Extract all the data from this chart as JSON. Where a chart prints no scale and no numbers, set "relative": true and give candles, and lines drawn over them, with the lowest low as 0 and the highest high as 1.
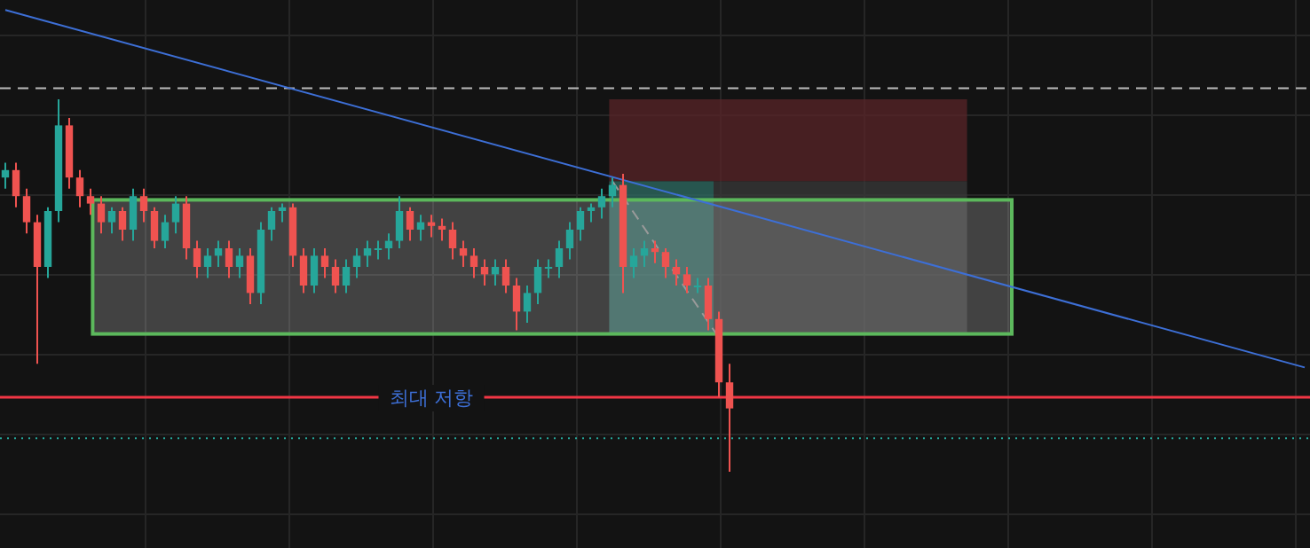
{
  "chart_data": {
    "type": "candlestick",
    "relative": true,
    "grid": true,
    "categories": [
      null,
      null,
      null,
      null,
      null,
      null,
      null,
      null,
      null,
      null,
      null,
      null,
      null,
      null,
      null,
      null,
      null,
      null,
      null,
      null,
      null,
      null,
      null,
      null,
      null,
      null,
      null,
      null,
      null,
      null,
      null,
      null,
      null,
      null,
      null,
      null,
      null,
      null,
      null,
      null,
      null,
      null,
      null,
      null,
      null,
      null,
      null,
      null,
      null,
      null,
      null,
      null,
      null,
      null,
      null,
      null,
      null,
      null,
      null,
      null,
      null,
      null,
      null,
      null,
      null,
      null,
      null,
      null,
      null,
      null,
      null,
      null,
      null,
      null,
      null,
      null,
      null,
      null,
      null,
      null,
      null,
      null,
      null,
      null,
      null,
      null,
      null,
      null,
      null,
      null,
      null,
      null,
      null,
      null,
      null,
      null,
      null,
      null,
      null,
      null,
      null,
      null,
      null,
      null,
      null,
      null,
      null,
      null,
      null,
      null,
      null,
      null,
      null,
      null,
      null,
      null,
      null,
      null,
      null,
      null,
      null,
      null,
      null
    ],
    "ohlc": [
      [
        0.79,
        0.83,
        0.76,
        0.81
      ],
      [
        0.81,
        0.83,
        0.71,
        0.74
      ],
      [
        0.74,
        0.76,
        0.64,
        0.67
      ],
      [
        0.67,
        0.69,
        0.29,
        0.55
      ],
      [
        0.55,
        0.71,
        0.52,
        0.7
      ],
      [
        0.7,
        1.0,
        0.67,
        0.93
      ],
      [
        0.93,
        0.95,
        0.76,
        0.79
      ],
      [
        0.79,
        0.81,
        0.71,
        0.74
      ],
      [
        0.74,
        0.76,
        0.69,
        0.72
      ],
      [
        0.72,
        0.74,
        0.64,
        0.67
      ],
      [
        0.67,
        0.71,
        0.64,
        0.7
      ],
      [
        0.7,
        0.71,
        0.62,
        0.65
      ],
      [
        0.65,
        0.76,
        0.62,
        0.74
      ],
      [
        0.74,
        0.76,
        0.67,
        0.7
      ],
      [
        0.7,
        0.71,
        0.6,
        0.62
      ],
      [
        0.62,
        0.69,
        0.6,
        0.67
      ],
      [
        0.67,
        0.74,
        0.64,
        0.72
      ],
      [
        0.72,
        0.74,
        0.57,
        0.6
      ],
      [
        0.6,
        0.62,
        0.52,
        0.55
      ],
      [
        0.55,
        0.6,
        0.52,
        0.58
      ],
      [
        0.58,
        0.62,
        0.55,
        0.6
      ],
      [
        0.6,
        0.62,
        0.52,
        0.55
      ],
      [
        0.55,
        0.6,
        0.52,
        0.58
      ],
      [
        0.58,
        0.6,
        0.45,
        0.48
      ],
      [
        0.48,
        0.67,
        0.45,
        0.65
      ],
      [
        0.65,
        0.71,
        0.62,
        0.7
      ],
      [
        0.7,
        0.72,
        0.67,
        0.71
      ],
      [
        0.71,
        0.72,
        0.55,
        0.58
      ],
      [
        0.58,
        0.6,
        0.48,
        0.5
      ],
      [
        0.5,
        0.6,
        0.48,
        0.58
      ],
      [
        0.58,
        0.6,
        0.52,
        0.55
      ],
      [
        0.55,
        0.57,
        0.48,
        0.5
      ],
      [
        0.5,
        0.57,
        0.48,
        0.55
      ],
      [
        0.55,
        0.6,
        0.52,
        0.58
      ],
      [
        0.58,
        0.62,
        0.55,
        0.6
      ],
      [
        0.6,
        0.62,
        0.57,
        0.6
      ],
      [
        0.6,
        0.64,
        0.57,
        0.62
      ],
      [
        0.62,
        0.74,
        0.6,
        0.7
      ],
      [
        0.7,
        0.71,
        0.62,
        0.65
      ],
      [
        0.65,
        0.69,
        0.62,
        0.67
      ],
      [
        0.67,
        0.69,
        0.63,
        0.66
      ],
      [
        0.66,
        0.68,
        0.62,
        0.65
      ],
      [
        0.65,
        0.67,
        0.57,
        0.6
      ],
      [
        0.6,
        0.62,
        0.55,
        0.58
      ],
      [
        0.58,
        0.6,
        0.52,
        0.55
      ],
      [
        0.55,
        0.57,
        0.5,
        0.53
      ],
      [
        0.53,
        0.57,
        0.5,
        0.55
      ],
      [
        0.55,
        0.57,
        0.48,
        0.5
      ],
      [
        0.5,
        0.52,
        0.38,
        0.43
      ],
      [
        0.43,
        0.5,
        0.4,
        0.48
      ],
      [
        0.48,
        0.57,
        0.45,
        0.55
      ],
      [
        0.55,
        0.57,
        0.52,
        0.55
      ],
      [
        0.55,
        0.62,
        0.52,
        0.6
      ],
      [
        0.6,
        0.67,
        0.57,
        0.65
      ],
      [
        0.65,
        0.71,
        0.62,
        0.7
      ],
      [
        0.7,
        0.72,
        0.67,
        0.71
      ],
      [
        0.71,
        0.76,
        0.68,
        0.74
      ],
      [
        0.74,
        0.79,
        0.71,
        0.77
      ],
      [
        0.77,
        0.8,
        0.48,
        0.55
      ],
      [
        0.55,
        0.6,
        0.52,
        0.58
      ],
      [
        0.58,
        0.62,
        0.55,
        0.6
      ],
      [
        0.6,
        0.62,
        0.56,
        0.59
      ],
      [
        0.59,
        0.6,
        0.52,
        0.55
      ],
      [
        0.55,
        0.57,
        0.5,
        0.53
      ],
      [
        0.53,
        0.55,
        0.48,
        0.5
      ],
      [
        0.5,
        0.52,
        0.48,
        0.5
      ],
      [
        0.5,
        0.52,
        0.38,
        0.41
      ],
      [
        0.41,
        0.43,
        0.2,
        0.24
      ],
      [
        0.24,
        0.29,
        0.0,
        0.17
      ],
      null,
      null,
      null,
      null,
      null,
      null,
      null,
      null,
      null,
      null,
      null,
      null,
      null,
      null,
      null,
      null,
      null,
      null,
      null,
      null,
      null,
      null,
      null,
      null,
      null,
      null,
      null,
      null,
      null,
      null,
      null,
      null,
      null,
      null,
      null,
      null,
      null,
      null,
      null,
      null,
      null,
      null,
      null,
      null,
      null,
      null,
      null,
      null,
      null,
      null,
      null,
      null,
      null,
      null
    ],
    "colors": [
      "#26a69a",
      "#ef5350",
      "#ef5350",
      "#ef5350",
      "#26a69a",
      "#26a69a",
      "#ef5350",
      "#ef5350",
      "#ef5350",
      "#ef5350",
      "#26a69a",
      "#ef5350",
      "#26a69a",
      "#ef5350",
      "#ef5350",
      "#26a69a",
      "#26a69a",
      "#ef5350",
      "#ef5350",
      "#26a69a",
      "#26a69a",
      "#ef5350",
      "#26a69a",
      "#ef5350",
      "#26a69a",
      "#26a69a",
      "#26a69a",
      "#ef5350",
      "#ef5350",
      "#26a69a",
      "#ef5350",
      "#ef5350",
      "#26a69a",
      "#26a69a",
      "#26a69a",
      "#26a69a",
      "#26a69a",
      "#26a69a",
      "#ef5350",
      "#26a69a",
      "#ef5350",
      "#ef5350",
      "#ef5350",
      "#ef5350",
      "#ef5350",
      "#ef5350",
      "#26a69a",
      "#ef5350",
      "#ef5350",
      "#26a69a",
      "#26a69a",
      "#26a69a",
      "#26a69a",
      "#26a69a",
      "#26a69a",
      "#26a69a",
      "#26a69a",
      "#26a69a",
      "#ef5350",
      "#26a69a",
      "#26a69a",
      "#ef5350",
      "#ef5350",
      "#ef5350",
      "#ef5350",
      "#26a69a",
      "#ef5350",
      "#ef5350",
      "#ef5350",
      null,
      null,
      null,
      null,
      null,
      null,
      null,
      null,
      null,
      null,
      null,
      null,
      null,
      null,
      null,
      null,
      null,
      null,
      null,
      null,
      null,
      null,
      null,
      null,
      null,
      null,
      null,
      null,
      null,
      null,
      null,
      null,
      null,
      null,
      null,
      null,
      null,
      null,
      null,
      null,
      null,
      null,
      null,
      null,
      null,
      null,
      null,
      null,
      null,
      null,
      null,
      null,
      null,
      null
    ],
    "series": [
      {
        "type": "line",
        "color": "#3d6fd6",
        "values": [
          1.24,
          null,
          null,
          null,
          null,
          null,
          null,
          null,
          null,
          null,
          null,
          null,
          null,
          null,
          null,
          null,
          null,
          null,
          null,
          null,
          null,
          null,
          null,
          null,
          null,
          null,
          null,
          null,
          null,
          null,
          null,
          null,
          null,
          null,
          null,
          null,
          null,
          null,
          null,
          null,
          null,
          null,
          null,
          null,
          null,
          null,
          null,
          null,
          null,
          null,
          null,
          null,
          null,
          null,
          null,
          null,
          null,
          null,
          null,
          null,
          null,
          null,
          null,
          null,
          null,
          null,
          null,
          null,
          null,
          null,
          null,
          null,
          null,
          null,
          null,
          null,
          null,
          null,
          null,
          null,
          null,
          null,
          null,
          null,
          null,
          null,
          null,
          null,
          null,
          null,
          null,
          null,
          null,
          null,
          null,
          null,
          null,
          null,
          null,
          null,
          null,
          null,
          null,
          null,
          null,
          null,
          null,
          null,
          null,
          null,
          null,
          null,
          null,
          null,
          null,
          null,
          null,
          null,
          null,
          null,
          null,
          null,
          0.28
        ]
      },
      {
        "type": "line",
        "color": "#9a9a9a",
        "line_style": "dashed",
        "values": [
          null,
          null,
          null,
          null,
          null,
          null,
          null,
          null,
          null,
          null,
          null,
          null,
          null,
          null,
          null,
          null,
          null,
          null,
          null,
          null,
          null,
          null,
          null,
          null,
          null,
          null,
          null,
          null,
          null,
          null,
          null,
          null,
          null,
          null,
          null,
          null,
          null,
          null,
          null,
          null,
          null,
          null,
          null,
          null,
          null,
          null,
          null,
          null,
          null,
          null,
          null,
          null,
          null,
          null,
          null,
          null,
          null,
          0.78,
          null,
          null,
          null,
          null,
          null,
          null,
          null,
          null,
          null,
          0.36,
          null,
          null,
          null,
          null,
          null,
          null,
          null,
          null,
          null,
          null,
          null,
          null,
          null,
          null,
          null,
          null,
          null,
          null,
          null,
          null,
          null,
          null,
          null,
          null,
          null,
          null,
          null,
          null,
          null,
          null,
          null,
          null,
          null,
          null,
          null,
          null,
          null,
          null,
          null,
          null,
          null,
          null,
          null,
          null,
          null,
          null,
          null,
          null,
          null,
          null,
          null,
          null,
          null,
          null,
          null
        ]
      }
    ],
    "ref_lines": [
      {
        "axis": "y",
        "value": 0.2,
        "label": "최대 저항",
        "color": "#f23645"
      },
      {
        "axis": "y",
        "value": 1.03,
        "color": "#bbbbbb",
        "line_style": "dashed"
      },
      {
        "axis": "y",
        "value": 0.09,
        "color": "#26a69a",
        "line_style": "dotted"
      }
    ],
    "bands": [
      {
        "axis": "y",
        "from": 0.78,
        "to": 1.0,
        "color": "#5a2428"
      },
      {
        "axis": "y",
        "from": 0.37,
        "to": 0.78,
        "color": "#2f6e64"
      },
      {
        "axis": "y",
        "from": 0.37,
        "to": 0.78,
        "color": "#3a3a3a"
      },
      {
        "axis": "y",
        "from": 0.37,
        "to": 0.73,
        "color": "#5cb85c"
      }
    ]
  }
}
